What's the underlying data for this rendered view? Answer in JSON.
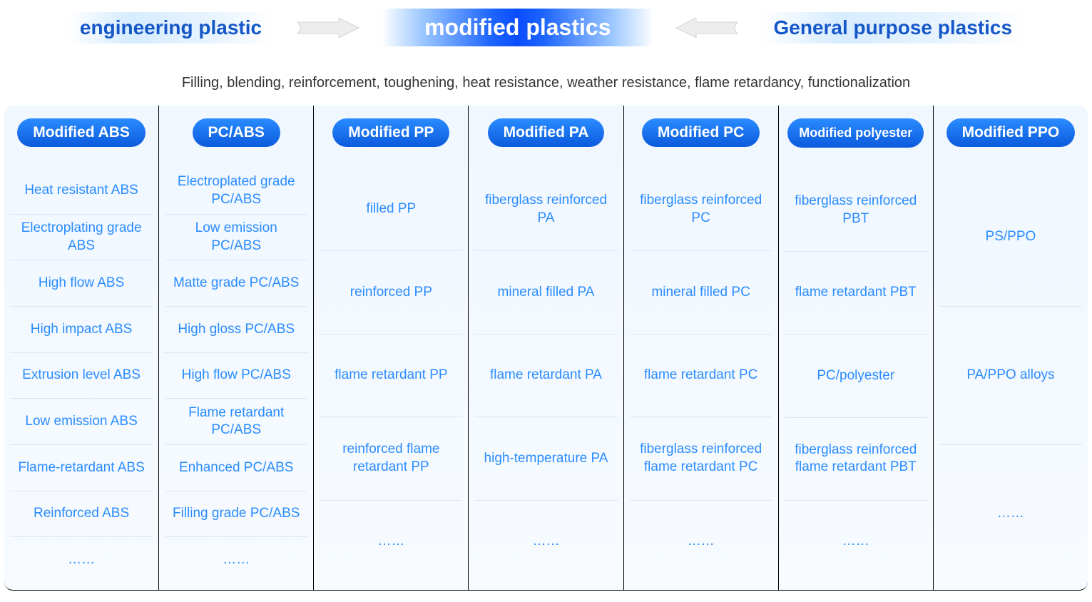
{
  "header": {
    "left_label": "engineering plastic",
    "center_label": "modified plastics",
    "right_label": "General purpose plastics",
    "left_color": "#1557c7",
    "right_color": "#1557c7",
    "arrow_fill": "#e8e8e8",
    "arrow_stroke": "#cccccc"
  },
  "subtitle": "Filling, blending, reinforcement, toughening, heat resistance, weather resistance, flame retardancy, functionalization",
  "columns": [
    {
      "title": "Modified ABS",
      "items": [
        "Heat resistant ABS",
        "Electroplating grade ABS",
        "High flow ABS",
        "High impact ABS",
        "Extrusion level ABS",
        "Low emission ABS",
        "Flame-retardant ABS",
        "Reinforced ABS",
        "……"
      ]
    },
    {
      "title": "PC/ABS",
      "items": [
        "Electroplated grade PC/ABS",
        "Low emission PC/ABS",
        "Matte grade PC/ABS",
        "High gloss PC/ABS",
        "High flow PC/ABS",
        "Flame retardant PC/ABS",
        "Enhanced PC/ABS",
        "Filling grade PC/ABS",
        "……"
      ]
    },
    {
      "title": "Modified PP",
      "items": [
        "filled PP",
        "reinforced PP",
        "flame retardant PP",
        "reinforced flame retardant PP",
        "……"
      ]
    },
    {
      "title": "Modified PA",
      "items": [
        "fiberglass reinforced PA",
        "mineral filled PA",
        "flame retardant PA",
        "high-temperature PA",
        "……"
      ]
    },
    {
      "title": "Modified PC",
      "items": [
        "fiberglass reinforced PC",
        "mineral filled PC",
        "flame retardant PC",
        "fiberglass reinforced flame retardant PC",
        "……"
      ]
    },
    {
      "title": "Modified polyester",
      "small": true,
      "items": [
        "fiberglass reinforced PBT",
        "flame retardant PBT",
        "PC/polyester",
        "fiberglass reinforced flame retardant PBT",
        "……"
      ]
    },
    {
      "title": "Modified PPO",
      "items": [
        "PS/PPO",
        "PA/PPO alloys",
        "……"
      ]
    }
  ],
  "style": {
    "pill_gradient_top": "#2a8cff",
    "pill_gradient_bottom": "#0b5add",
    "item_text_color": "#2a8cff",
    "column_bg_top": "#f0f7ff",
    "column_bg_bottom": "#f7fbff",
    "border_color": "#000000",
    "item_divider": "#d8e8f8",
    "subtitle_color": "#333333",
    "title_fontsize": 21,
    "item_fontsize": 19,
    "subtitle_fontsize": 20,
    "header_fontsize": 28,
    "center_fontsize": 32
  }
}
